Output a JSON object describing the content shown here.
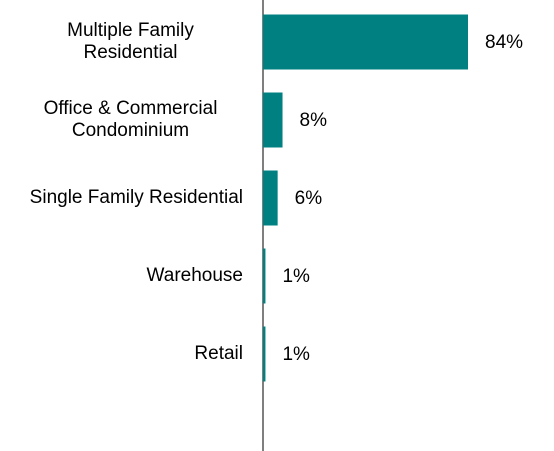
{
  "chart_data": {
    "type": "bar",
    "orientation": "horizontal",
    "categories": [
      "Multiple Family Residential",
      "Office & Commercial Condominium",
      "Single Family Residential",
      "Warehouse",
      "Retail"
    ],
    "values": [
      84,
      8,
      6,
      1,
      1
    ],
    "value_labels": [
      "84%",
      "8%",
      "6%",
      "1%",
      "1%"
    ],
    "color": "#008080"
  }
}
